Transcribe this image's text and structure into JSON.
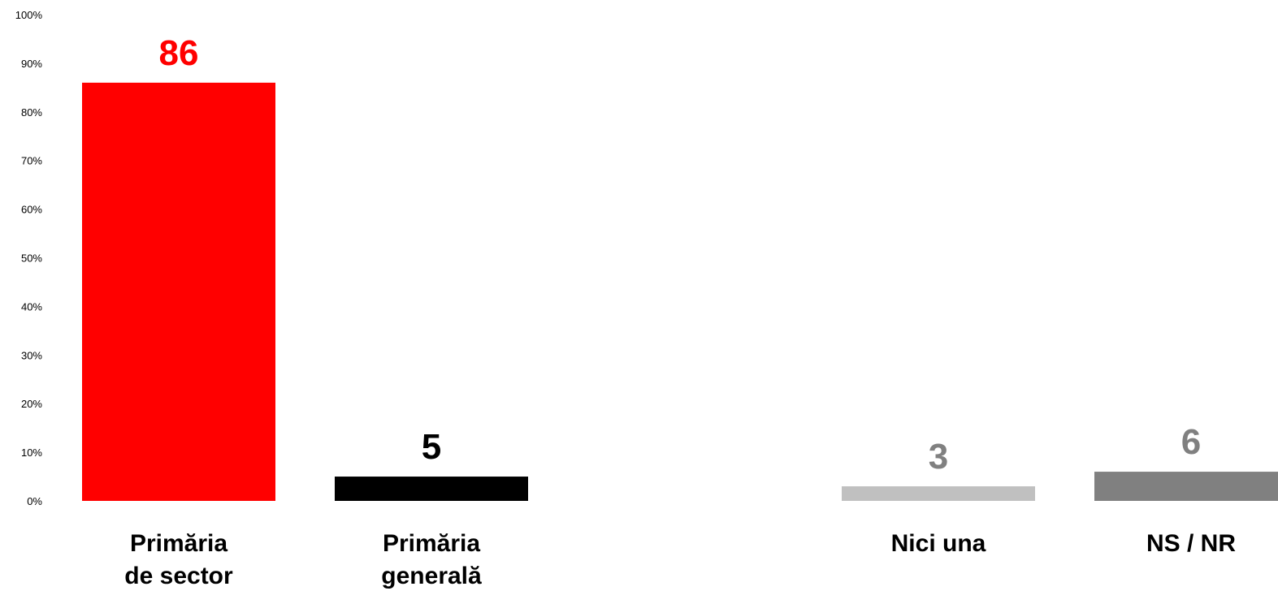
{
  "chart_data": {
    "type": "bar",
    "categories": [
      [
        "Primăria",
        "de sector"
      ],
      [
        "Primăria",
        "generală"
      ],
      [
        "Nici una"
      ],
      [
        "NS / NR"
      ]
    ],
    "values": [
      86,
      5,
      3,
      6
    ],
    "value_labels": [
      "86",
      "5",
      "3",
      "6"
    ],
    "bar_colors": [
      "#ff0000",
      "#000000",
      "#c0c0c0",
      "#808080"
    ],
    "value_label_colors": [
      "#ff0000",
      "#000000",
      "#808080",
      "#808080"
    ],
    "ylim": [
      0,
      100
    ],
    "y_ticks": [
      "0%",
      "10%",
      "20%",
      "30%",
      "40%",
      "50%",
      "60%",
      "70%",
      "80%",
      "90%",
      "100%"
    ],
    "grid": false,
    "legend": "none"
  }
}
